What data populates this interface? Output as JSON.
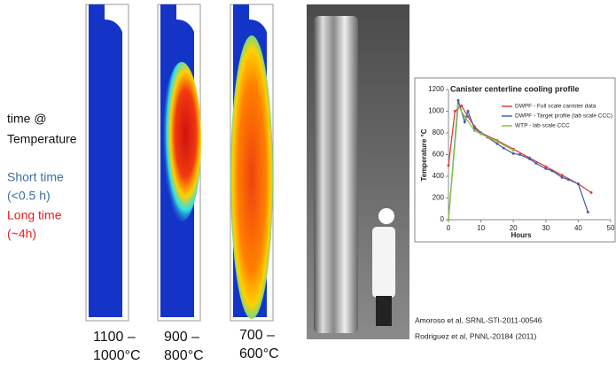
{
  "left_text": {
    "time_label": [
      "time @",
      "Temperature"
    ],
    "short": [
      "Short time",
      "(<0.5 h)"
    ],
    "long": [
      "Long time",
      "(~4h)"
    ]
  },
  "panels": [
    [
      "1100 –",
      "1000°C"
    ],
    [
      "900 –",
      "800°C"
    ],
    [
      "700 –",
      "600°C"
    ]
  ],
  "citations": [
    "Amoroso et al, SRNL-STI-2011-00546",
    "Rodriguez et al, PNNL-20184 (2011)"
  ],
  "chart_data": {
    "type": "line",
    "title": "Canister centerline cooling profile",
    "xlabel": "Hours",
    "ylabel": "Temperature °C",
    "xlim": [
      0,
      50
    ],
    "xticks": [
      0,
      10,
      20,
      30,
      40,
      50
    ],
    "ylim": [
      0,
      1200
    ],
    "yticks": [
      0,
      200,
      400,
      600,
      800,
      1000,
      1200
    ],
    "series": [
      {
        "name": "DWPF - Full scale canister data",
        "color": "#e0403a",
        "x": [
          0,
          2,
          4,
          6,
          8,
          10,
          15,
          20,
          25,
          30,
          35,
          40,
          44
        ],
        "values": [
          500,
          1000,
          1050,
          950,
          860,
          800,
          730,
          650,
          570,
          490,
          410,
          330,
          250
        ]
      },
      {
        "name": "DWPF - Target profile (lab scale CCC)",
        "color": "#4a5fa8",
        "x": [
          0,
          3,
          5,
          6,
          8,
          10,
          12,
          15,
          17,
          20,
          22,
          25,
          27,
          30,
          32,
          35,
          37,
          40,
          43
        ],
        "values": [
          0,
          1100,
          900,
          1000,
          840,
          800,
          760,
          700,
          660,
          610,
          600,
          560,
          520,
          470,
          450,
          390,
          370,
          330,
          70
        ]
      },
      {
        "name": "WTP - lab scale CCC",
        "color": "#8cc63f",
        "x": [
          0,
          3,
          5,
          8,
          10,
          15,
          20
        ],
        "values": [
          0,
          1050,
          950,
          820,
          790,
          720,
          640
        ]
      }
    ]
  }
}
